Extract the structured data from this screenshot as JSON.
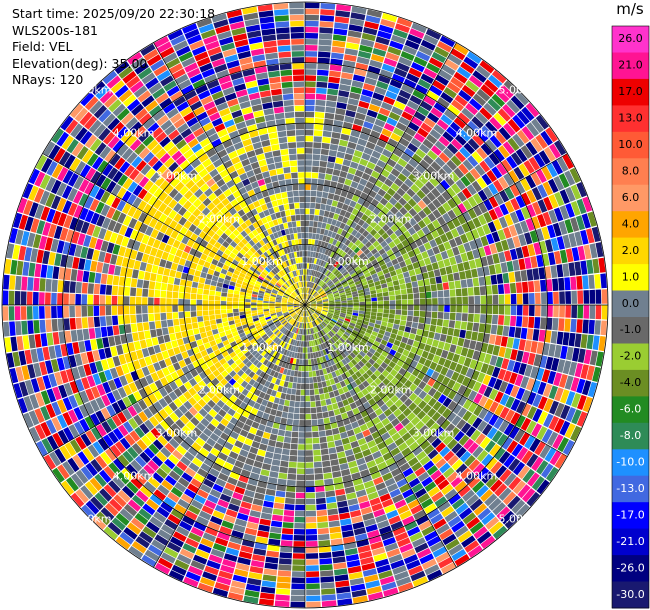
{
  "header": {
    "start_time": "Start time: 2025/09/20 22:30:18",
    "instrument": "WLS200s-181",
    "field": "Field: VEL",
    "elevation": "Elevation(deg): 35.00",
    "nrays": "NRays: 120"
  },
  "colorbar": {
    "unit": "m/s",
    "ticks": [
      "26.0",
      "21.0",
      "17.0",
      "13.0",
      "10.0",
      "8.0",
      "6.0",
      "4.0",
      "2.0",
      "1.0",
      "0.0",
      "-1.0",
      "-2.0",
      "-4.0",
      "-6.0",
      "-8.0",
      "-10.0",
      "-13.0",
      "-17.0",
      "-21.0",
      "-26.0",
      "-30.0"
    ],
    "colors": [
      "#ff33cc",
      "#ff1493",
      "#ee0000",
      "#ff3030",
      "#ff5a36",
      "#ff7f50",
      "#ff9966",
      "#ffa500",
      "#ffd700",
      "#ffff00",
      "#708090",
      "#696969",
      "#9acd32",
      "#6b8e23",
      "#228b22",
      "#2e8b57",
      "#1e90ff",
      "#4169e1",
      "#0000ff",
      "#0000cd",
      "#000080",
      "#191970"
    ],
    "tick_text_colors": [
      "#000000",
      "#000000",
      "#000000",
      "#000000",
      "#000000",
      "#000000",
      "#000000",
      "#000000",
      "#000000",
      "#000000",
      "#000000",
      "#000000",
      "#000000",
      "#000000",
      "#ffffff",
      "#ffffff",
      "#ffffff",
      "#ffffff",
      "#ffffff",
      "#ffffff",
      "#ffffff",
      "#ffffff"
    ]
  },
  "chart_data": {
    "type": "heatmap",
    "projection": "polar-ppi",
    "field": "VEL",
    "units": "m/s",
    "elevation_deg": 35.0,
    "nrays": 120,
    "range_rings_km": [
      1.0,
      2.0,
      3.0,
      4.0,
      5.0
    ],
    "range_ring_labels": [
      "1.00km",
      "2.00km",
      "3.00km",
      "4.00km",
      "5.00km"
    ],
    "spokes_deg": [
      0,
      30,
      60,
      90,
      120,
      150,
      180,
      210,
      240,
      270,
      300,
      330
    ],
    "max_range_km": 5.0,
    "description_of_pattern": {
      "near_range_0_to_3km": "mostly gray (~0 m/s) with yellow (~1-4 m/s) toward the west and green (~-1 to -4 m/s) toward the east",
      "far_range_3_to_5km": "noisy, all colors mixed (-30 to 26 m/s)"
    }
  }
}
